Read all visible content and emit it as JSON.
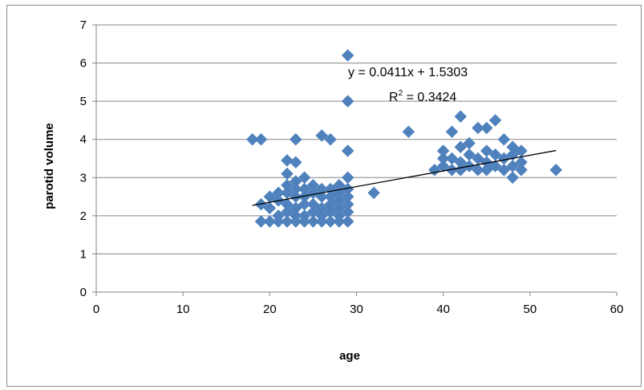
{
  "chart_data": {
    "type": "scatter",
    "title": "",
    "xlabel": "age",
    "ylabel": "parotid volume",
    "xlim": [
      0,
      60
    ],
    "ylim": [
      0,
      7
    ],
    "x_ticks": [
      "0",
      "10",
      "20",
      "30",
      "40",
      "50",
      "60"
    ],
    "y_ticks": [
      "0",
      "1",
      "2",
      "3",
      "4",
      "5",
      "6",
      "7"
    ],
    "grid": "horizontal",
    "legend": "none",
    "marker": "diamond",
    "marker_color": "#4f81bd",
    "trendline": {
      "type": "linear",
      "slope": 0.0411,
      "intercept": 1.5303,
      "x_range": [
        18,
        53
      ],
      "color": "#000000"
    },
    "annotations": {
      "equation": "y = 0.0411x + 1.5303",
      "r_squared_prefix": "R",
      "r_squared_sup": "2",
      "r_squared_value": " = 0.3424"
    },
    "points": [
      [
        18,
        4.0
      ],
      [
        19,
        4.0
      ],
      [
        19,
        1.85
      ],
      [
        19,
        2.3
      ],
      [
        20,
        1.85
      ],
      [
        20,
        2.2
      ],
      [
        20,
        2.5
      ],
      [
        21,
        1.85
      ],
      [
        21,
        2.0
      ],
      [
        21,
        2.4
      ],
      [
        21,
        2.6
      ],
      [
        22,
        1.85
      ],
      [
        22,
        2.1
      ],
      [
        22,
        2.3
      ],
      [
        22,
        2.6
      ],
      [
        22,
        2.8
      ],
      [
        22,
        3.1
      ],
      [
        22,
        3.45
      ],
      [
        23,
        1.85
      ],
      [
        23,
        2.0
      ],
      [
        23,
        2.2
      ],
      [
        23,
        2.5
      ],
      [
        23,
        2.7
      ],
      [
        23,
        2.9
      ],
      [
        23,
        3.4
      ],
      [
        23,
        4.0
      ],
      [
        24,
        1.85
      ],
      [
        24,
        2.0
      ],
      [
        24,
        2.3
      ],
      [
        24,
        2.5
      ],
      [
        24,
        2.7
      ],
      [
        24,
        3.0
      ],
      [
        25,
        1.85
      ],
      [
        25,
        2.1
      ],
      [
        25,
        2.3
      ],
      [
        25,
        2.6
      ],
      [
        25,
        2.8
      ],
      [
        26,
        1.85
      ],
      [
        26,
        2.0
      ],
      [
        26,
        2.2
      ],
      [
        26,
        2.5
      ],
      [
        26,
        2.7
      ],
      [
        26,
        4.1
      ],
      [
        27,
        1.85
      ],
      [
        27,
        2.1
      ],
      [
        27,
        2.3
      ],
      [
        27,
        2.5
      ],
      [
        27,
        2.7
      ],
      [
        27,
        4.0
      ],
      [
        28,
        1.85
      ],
      [
        28,
        2.0
      ],
      [
        28,
        2.2
      ],
      [
        28,
        2.4
      ],
      [
        28,
        2.6
      ],
      [
        28,
        2.8
      ],
      [
        29,
        1.85
      ],
      [
        29,
        2.1
      ],
      [
        29,
        2.3
      ],
      [
        29,
        2.5
      ],
      [
        29,
        2.7
      ],
      [
        29,
        3.0
      ],
      [
        29,
        3.7
      ],
      [
        29,
        5.0
      ],
      [
        29,
        6.2
      ],
      [
        32,
        2.6
      ],
      [
        36,
        4.2
      ],
      [
        39,
        3.2
      ],
      [
        40,
        3.3
      ],
      [
        40,
        3.5
      ],
      [
        40,
        3.7
      ],
      [
        41,
        3.2
      ],
      [
        41,
        3.5
      ],
      [
        41,
        4.2
      ],
      [
        42,
        3.2
      ],
      [
        42,
        3.4
      ],
      [
        42,
        3.8
      ],
      [
        42,
        4.6
      ],
      [
        43,
        3.3
      ],
      [
        43,
        3.6
      ],
      [
        43,
        3.9
      ],
      [
        44,
        3.2
      ],
      [
        44,
        3.5
      ],
      [
        44,
        4.3
      ],
      [
        45,
        3.2
      ],
      [
        45,
        3.4
      ],
      [
        45,
        3.7
      ],
      [
        45,
        4.3
      ],
      [
        46,
        3.3
      ],
      [
        46,
        3.6
      ],
      [
        46,
        4.5
      ],
      [
        47,
        3.2
      ],
      [
        47,
        3.5
      ],
      [
        47,
        4.0
      ],
      [
        48,
        3.0
      ],
      [
        48,
        3.3
      ],
      [
        48,
        3.6
      ],
      [
        48,
        3.8
      ],
      [
        49,
        3.2
      ],
      [
        49,
        3.4
      ],
      [
        49,
        3.7
      ],
      [
        53,
        3.2
      ]
    ]
  }
}
